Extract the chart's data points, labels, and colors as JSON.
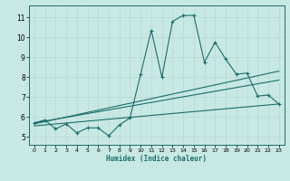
{
  "title": "",
  "xlabel": "Humidex (Indice chaleur)",
  "ylabel": "",
  "bg_color": "#c8e8e4",
  "grid_color": "#b8d8d4",
  "line_color": "#1a6e6a",
  "x_ticks": [
    0,
    1,
    2,
    3,
    4,
    5,
    6,
    7,
    8,
    9,
    10,
    11,
    12,
    13,
    14,
    15,
    16,
    17,
    18,
    19,
    20,
    21,
    22,
    23
  ],
  "y_ticks": [
    5,
    6,
    7,
    8,
    9,
    10,
    11
  ],
  "ylim": [
    4.6,
    11.6
  ],
  "xlim": [
    -0.5,
    23.5
  ],
  "series1": {
    "x": [
      0,
      1,
      2,
      3,
      4,
      5,
      6,
      7,
      8,
      9,
      10,
      11,
      12,
      13,
      14,
      15,
      16,
      17,
      18,
      19,
      20,
      21,
      22,
      23
    ],
    "y": [
      5.7,
      5.85,
      5.4,
      5.65,
      5.2,
      5.45,
      5.45,
      5.05,
      5.6,
      5.95,
      8.15,
      10.35,
      8.0,
      10.8,
      11.1,
      11.1,
      8.75,
      9.75,
      8.9,
      8.15,
      8.2,
      7.05,
      7.1,
      6.65
    ]
  },
  "series2": {
    "x": [
      0,
      23
    ],
    "y": [
      5.65,
      8.3
    ]
  },
  "series3": {
    "x": [
      0,
      23
    ],
    "y": [
      5.7,
      7.85
    ]
  },
  "series4": {
    "x": [
      0,
      23
    ],
    "y": [
      5.55,
      6.65
    ]
  }
}
